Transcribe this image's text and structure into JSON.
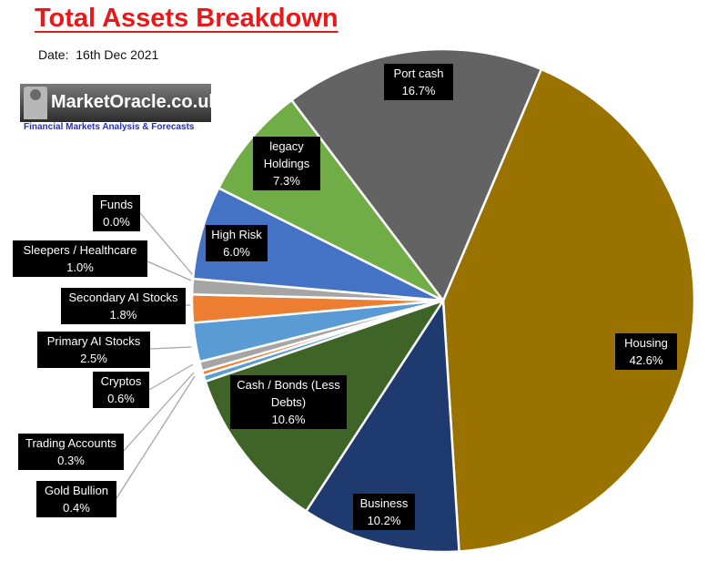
{
  "chart_data": {
    "type": "pie",
    "title": "Total Assets Breakdown",
    "subtitle": "Date:  16th Dec 2021",
    "slices": [
      {
        "name": "Housing",
        "label_lines": [
          "Housing",
          "42.6%"
        ],
        "value": 42.6,
        "color": "#9a7200"
      },
      {
        "name": "Business",
        "label_lines": [
          "Business",
          "10.2%"
        ],
        "value": 10.2,
        "color": "#1f3a6e"
      },
      {
        "name": "Cash / Bonds  (Less Debts)",
        "label_lines": [
          "Cash / Bonds  (Less",
          "Debts)",
          "10.6%"
        ],
        "value": 10.6,
        "color": "#3f6428"
      },
      {
        "name": "Gold Bullion",
        "label_lines": [
          "Gold Bullion",
          "0.4%"
        ],
        "value": 0.4,
        "color": "#5b9bd5"
      },
      {
        "name": "Trading Accounts",
        "label_lines": [
          "Trading Accounts",
          "0.3%"
        ],
        "value": 0.3,
        "color": "#ed7d31"
      },
      {
        "name": "Cryptos",
        "label_lines": [
          "Cryptos",
          "0.6%"
        ],
        "value": 0.6,
        "color": "#a5a5a5"
      },
      {
        "name": "Primary AI Stocks",
        "label_lines": [
          "Primary AI Stocks",
          "2.5%"
        ],
        "value": 2.5,
        "color": "#5b9bd5"
      },
      {
        "name": "Secondary AI Stocks",
        "label_lines": [
          "Secondary AI Stocks",
          "1.8%"
        ],
        "value": 1.8,
        "color": "#ed7d31"
      },
      {
        "name": "Sleepers / Healthcare",
        "label_lines": [
          "Sleepers / Healthcare",
          "1.0%"
        ],
        "value": 1.0,
        "color": "#a5a5a5"
      },
      {
        "name": "Funds",
        "label_lines": [
          "Funds",
          "0.0%"
        ],
        "value": 0.0,
        "color": "#ffc000"
      },
      {
        "name": "High Risk",
        "label_lines": [
          "High Risk",
          "6.0%"
        ],
        "value": 6.0,
        "color": "#4472c4"
      },
      {
        "name": "legacy Holdings",
        "label_lines": [
          "legacy",
          "Holdings",
          "7.3%"
        ],
        "value": 7.3,
        "color": "#70ad47"
      },
      {
        "name": "Port cash",
        "label_lines": [
          "Port cash",
          "16.7%"
        ],
        "value": 16.7,
        "color": "#636363"
      }
    ]
  },
  "logo": {
    "brand": "MarketOracle.co.uk",
    "tagline": "Financial Markets Analysis & Forecasts"
  }
}
